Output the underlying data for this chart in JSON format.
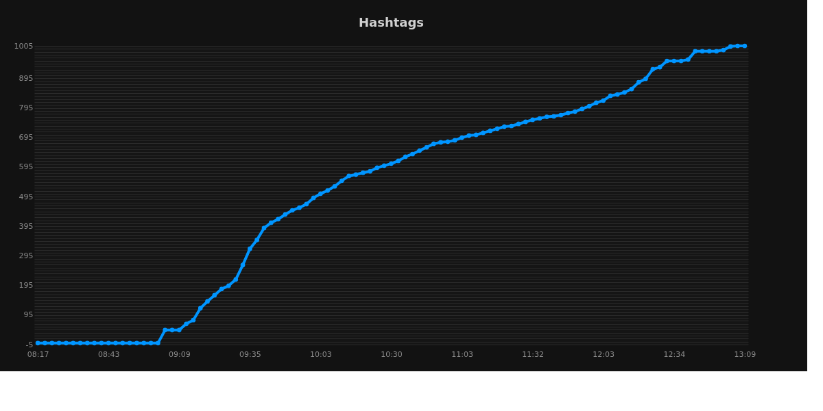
{
  "chart_data": {
    "type": "line",
    "title": "Hashtags",
    "marker": "circle",
    "line_style": "solid",
    "grid": "y",
    "categories": [
      "08:17",
      null,
      null,
      null,
      null,
      null,
      null,
      null,
      null,
      null,
      "08:43",
      null,
      null,
      null,
      null,
      null,
      null,
      null,
      null,
      null,
      "09:09",
      null,
      null,
      null,
      null,
      null,
      null,
      null,
      null,
      null,
      "09:35",
      null,
      null,
      null,
      null,
      null,
      null,
      null,
      null,
      null,
      "10:03",
      null,
      null,
      null,
      null,
      null,
      null,
      null,
      null,
      null,
      "10:30",
      null,
      null,
      null,
      null,
      null,
      null,
      null,
      null,
      null,
      "11:03",
      null,
      null,
      null,
      null,
      null,
      null,
      null,
      null,
      null,
      "11:32",
      null,
      null,
      null,
      null,
      null,
      null,
      null,
      null,
      null,
      "12:03",
      null,
      null,
      null,
      null,
      null,
      null,
      null,
      null,
      null,
      "12:34",
      null,
      null,
      null,
      null,
      null,
      null,
      null,
      null,
      null,
      "13:09"
    ],
    "series": [
      {
        "color": "#0095ff",
        "values": [
          0,
          0,
          0,
          0,
          0,
          0,
          0,
          0,
          0,
          0,
          0,
          0,
          0,
          0,
          0,
          0,
          0,
          0,
          44,
          44,
          44,
          65,
          78,
          118,
          141,
          162,
          183,
          194,
          215,
          264,
          319,
          349,
          389,
          407,
          419,
          435,
          449,
          458,
          470,
          491,
          505,
          516,
          530,
          549,
          565,
          570,
          576,
          581,
          593,
          600,
          607,
          616,
          630,
          639,
          651,
          662,
          674,
          679,
          681,
          686,
          695,
          702,
          704,
          711,
          718,
          725,
          732,
          734,
          741,
          748,
          755,
          760,
          765,
          767,
          771,
          778,
          783,
          792,
          801,
          813,
          820,
          836,
          841,
          848,
          859,
          882,
          894,
          926,
          933,
          954,
          954,
          954,
          959,
          987,
          987,
          987,
          987,
          991,
          1003,
          1005,
          1005
        ]
      }
    ],
    "ylim": [
      -5,
      1005
    ],
    "yticks": [
      -5,
      {
        "value": 5,
        "label": null
      },
      {
        "value": 15,
        "label": null
      },
      {
        "value": 25,
        "label": null
      },
      {
        "value": 35,
        "label": null
      },
      {
        "value": 45,
        "label": null
      },
      {
        "value": 55,
        "label": null
      },
      {
        "value": 65,
        "label": null
      },
      {
        "value": 75,
        "label": null
      },
      {
        "value": 85,
        "label": null
      },
      95,
      {
        "value": 105,
        "label": null
      },
      {
        "value": 115,
        "label": null
      },
      {
        "value": 125,
        "label": null
      },
      {
        "value": 135,
        "label": null
      },
      {
        "value": 145,
        "label": null
      },
      {
        "value": 155,
        "label": null
      },
      {
        "value": 165,
        "label": null
      },
      {
        "value": 175,
        "label": null
      },
      {
        "value": 185,
        "label": null
      },
      195,
      {
        "value": 205,
        "label": null
      },
      {
        "value": 215,
        "label": null
      },
      {
        "value": 225,
        "label": null
      },
      {
        "value": 235,
        "label": null
      },
      {
        "value": 245,
        "label": null
      },
      {
        "value": 255,
        "label": null
      },
      {
        "value": 265,
        "label": null
      },
      {
        "value": 275,
        "label": null
      },
      {
        "value": 285,
        "label": null
      },
      295,
      {
        "value": 305,
        "label": null
      },
      {
        "value": 315,
        "label": null
      },
      {
        "value": 325,
        "label": null
      },
      {
        "value": 335,
        "label": null
      },
      {
        "value": 345,
        "label": null
      },
      {
        "value": 355,
        "label": null
      },
      {
        "value": 365,
        "label": null
      },
      {
        "value": 375,
        "label": null
      },
      {
        "value": 385,
        "label": null
      },
      395,
      {
        "value": 405,
        "label": null
      },
      {
        "value": 415,
        "label": null
      },
      {
        "value": 425,
        "label": null
      },
      {
        "value": 435,
        "label": null
      },
      {
        "value": 445,
        "label": null
      },
      {
        "value": 455,
        "label": null
      },
      {
        "value": 465,
        "label": null
      },
      {
        "value": 475,
        "label": null
      },
      {
        "value": 485,
        "label": null
      },
      495,
      {
        "value": 505,
        "label": null
      },
      {
        "value": 515,
        "label": null
      },
      {
        "value": 525,
        "label": null
      },
      {
        "value": 535,
        "label": null
      },
      {
        "value": 545,
        "label": null
      },
      {
        "value": 555,
        "label": null
      },
      {
        "value": 565,
        "label": null
      },
      {
        "value": 575,
        "label": null
      },
      {
        "value": 585,
        "label": null
      },
      595,
      {
        "value": 605,
        "label": null
      },
      {
        "value": 615,
        "label": null
      },
      {
        "value": 625,
        "label": null
      },
      {
        "value": 635,
        "label": null
      },
      {
        "value": 645,
        "label": null
      },
      {
        "value": 655,
        "label": null
      },
      {
        "value": 665,
        "label": null
      },
      {
        "value": 675,
        "label": null
      },
      {
        "value": 685,
        "label": null
      },
      695,
      {
        "value": 705,
        "label": null
      },
      {
        "value": 715,
        "label": null
      },
      {
        "value": 725,
        "label": null
      },
      {
        "value": 735,
        "label": null
      },
      {
        "value": 745,
        "label": null
      },
      {
        "value": 755,
        "label": null
      },
      {
        "value": 765,
        "label": null
      },
      {
        "value": 775,
        "label": null
      },
      {
        "value": 785,
        "label": null
      },
      795,
      {
        "value": 805,
        "label": null
      },
      {
        "value": 815,
        "label": null
      },
      {
        "value": 825,
        "label": null
      },
      {
        "value": 835,
        "label": null
      },
      {
        "value": 845,
        "label": null
      },
      {
        "value": 855,
        "label": null
      },
      {
        "value": 865,
        "label": null
      },
      {
        "value": 875,
        "label": null
      },
      {
        "value": 885,
        "label": null
      },
      895,
      {
        "value": 905,
        "label": null
      },
      {
        "value": 915,
        "label": null
      },
      {
        "value": 925,
        "label": null
      },
      {
        "value": 935,
        "label": null
      },
      {
        "value": 945,
        "label": null
      },
      {
        "value": 955,
        "label": null
      },
      {
        "value": 965,
        "label": null
      },
      {
        "value": 975,
        "label": null
      },
      {
        "value": 985,
        "label": null
      },
      {
        "value": 995,
        "label": null
      },
      1005
    ]
  }
}
